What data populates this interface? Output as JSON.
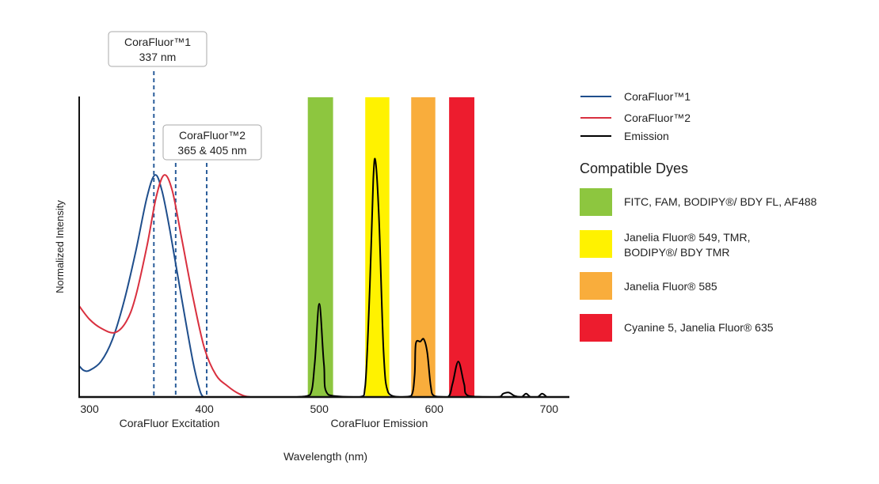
{
  "chart_data": {
    "type": "line",
    "xlabel": "Wavelength (nm)",
    "ylabel": "Normalized Intensity",
    "xlim": [
      291,
      717
    ],
    "ylim": [
      0,
      1.35
    ],
    "x_ticks": [
      300,
      400,
      500,
      600,
      700
    ],
    "sublabels": {
      "excitation": "CoraFluor Excitation",
      "emission": "CoraFluor Emission"
    },
    "grid": false,
    "legend_position": "right",
    "series": [
      {
        "name": "CoraFluor™1",
        "color": "#1f4e8c",
        "points": [
          [
            291,
            0.14
          ],
          [
            295,
            0.12
          ],
          [
            300,
            0.12
          ],
          [
            310,
            0.16
          ],
          [
            320,
            0.26
          ],
          [
            330,
            0.43
          ],
          [
            340,
            0.65
          ],
          [
            350,
            0.9
          ],
          [
            357,
            1.0
          ],
          [
            363,
            0.93
          ],
          [
            370,
            0.75
          ],
          [
            380,
            0.45
          ],
          [
            390,
            0.16
          ],
          [
            396,
            0.03
          ],
          [
            399,
            0
          ]
        ]
      },
      {
        "name": "CoraFluor™2",
        "color": "#d9303f",
        "points": [
          [
            291,
            0.41
          ],
          [
            300,
            0.35
          ],
          [
            310,
            0.31
          ],
          [
            322,
            0.29
          ],
          [
            332,
            0.34
          ],
          [
            340,
            0.45
          ],
          [
            350,
            0.68
          ],
          [
            358,
            0.9
          ],
          [
            365,
            1.0
          ],
          [
            372,
            0.93
          ],
          [
            380,
            0.72
          ],
          [
            390,
            0.45
          ],
          [
            400,
            0.22
          ],
          [
            410,
            0.1
          ],
          [
            420,
            0.05
          ],
          [
            430,
            0.015
          ],
          [
            440,
            0.0
          ],
          [
            460,
            0.0
          ]
        ]
      },
      {
        "name": "Emission",
        "color": "#000000",
        "points": [
          [
            480,
            0
          ],
          [
            492,
            0.01
          ],
          [
            496,
            0.15
          ],
          [
            500,
            0.42
          ],
          [
            504,
            0.15
          ],
          [
            508,
            0.01
          ],
          [
            535,
            0
          ],
          [
            540,
            0.05
          ],
          [
            544,
            0.5
          ],
          [
            547,
            0.98
          ],
          [
            549,
            1.06
          ],
          [
            552,
            0.8
          ],
          [
            556,
            0.2
          ],
          [
            560,
            0.02
          ],
          [
            570,
            0
          ],
          [
            580,
            0.005
          ],
          [
            583,
            0.1
          ],
          [
            584,
            0.24
          ],
          [
            588,
            0.25
          ],
          [
            591,
            0.26
          ],
          [
            594,
            0.2
          ],
          [
            597,
            0.05
          ],
          [
            600,
            0.005
          ],
          [
            612,
            0
          ],
          [
            616,
            0.06
          ],
          [
            621,
            0.16
          ],
          [
            626,
            0.06
          ],
          [
            630,
            0.005
          ],
          [
            655,
            0
          ],
          [
            660,
            0.015
          ],
          [
            665,
            0.02
          ],
          [
            670,
            0.005
          ],
          [
            676,
            0
          ],
          [
            680,
            0.015
          ],
          [
            684,
            0
          ],
          [
            690,
            0
          ],
          [
            694,
            0.015
          ],
          [
            698,
            0
          ]
        ]
      }
    ],
    "excitation_lines_nm": [
      356,
      375,
      402
    ],
    "annotations": [
      {
        "line1": "CoraFluor™1",
        "line2": "337 nm"
      },
      {
        "line1": "CoraFluor™2",
        "line2": "365 & 405 nm"
      }
    ],
    "dye_bands": [
      {
        "range": [
          490,
          512
        ],
        "color": "#8dc63f",
        "label": "FITC, FAM, BODIPY®/ BDY FL, AF488"
      },
      {
        "range": [
          540,
          561
        ],
        "color": "#fff200",
        "label": "Janelia Fluor® 549, TMR,",
        "label2": "BODIPY®/ BDY TMR"
      },
      {
        "range": [
          580,
          601
        ],
        "color": "#f9ad3c",
        "label": "Janelia Fluor® 585"
      },
      {
        "range": [
          613,
          635
        ],
        "color": "#ed1c2e",
        "label": "Cyanine 5, Janelia Fluor® 635"
      }
    ],
    "legend_title": "Compatible Dyes"
  }
}
